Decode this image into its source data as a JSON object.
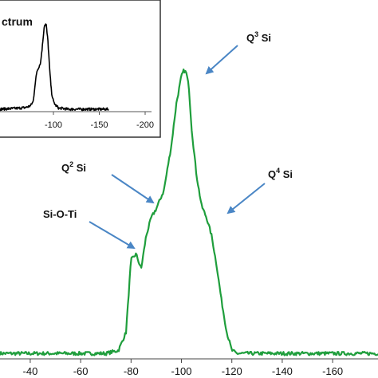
{
  "chart_data": [
    {
      "type": "line",
      "title": "",
      "xlabel": "",
      "ylabel": "",
      "xlim": [
        -28,
        -178
      ],
      "x_ticks": [
        -40,
        -60,
        -80,
        -100,
        -120,
        -140,
        -160
      ],
      "x_tick_labels": [
        "-40",
        "-60",
        "-80",
        "-100",
        "-120",
        "-140",
        "-160"
      ],
      "grid": false,
      "series": [
        {
          "color": "#1f9e3c",
          "x": [
            -30,
            -40,
            -50,
            -60,
            -70,
            -75,
            -78,
            -80,
            -82,
            -84,
            -86,
            -88,
            -90,
            -93,
            -96,
            -98,
            -100,
            -101,
            -102,
            -103,
            -104,
            -106,
            -108,
            -110,
            -112,
            -114,
            -116,
            -118,
            -120,
            -122,
            -124,
            -126,
            -130,
            -140,
            -150,
            -160,
            -170,
            -178
          ],
          "y": [
            0.01,
            0.01,
            0.01,
            0.01,
            0.01,
            0.02,
            0.08,
            0.32,
            0.34,
            0.29,
            0.4,
            0.46,
            0.49,
            0.55,
            0.7,
            0.84,
            0.93,
            0.95,
            0.94,
            0.89,
            0.76,
            0.6,
            0.5,
            0.46,
            0.4,
            0.3,
            0.18,
            0.08,
            0.02,
            0.01,
            0.01,
            0.01,
            0.01,
            0.01,
            0.01,
            0.01,
            0.01,
            0.01
          ]
        }
      ],
      "annotations": [
        {
          "base": "Q",
          "sup": "3",
          "tail": " Si"
        },
        {
          "base": "Q",
          "sup": "2",
          "tail": " Si"
        },
        {
          "base": "Q",
          "sup": "4",
          "tail": " Si"
        },
        {
          "base": "Si-O-Ti",
          "sup": "",
          "tail": ""
        }
      ],
      "arrow_color": "#4a86c5"
    },
    {
      "type": "line",
      "title": "ctrum",
      "xlim": [
        -40,
        -200
      ],
      "x_ticks": [
        -100,
        -150,
        -200
      ],
      "x_tick_labels": [
        "-100",
        "-150",
        "-200"
      ],
      "grid": false,
      "series": [
        {
          "color": "#000000",
          "x": [
            -40,
            -60,
            -70,
            -75,
            -78,
            -80,
            -82,
            -84,
            -86,
            -88,
            -90,
            -92,
            -94,
            -96,
            -98,
            -100,
            -102,
            -104,
            -106,
            -108,
            -110,
            -115,
            -120,
            -140,
            -160,
            -200
          ],
          "y": [
            0.01,
            0.02,
            0.03,
            0.05,
            0.1,
            0.3,
            0.45,
            0.5,
            0.55,
            0.75,
            0.98,
            1.0,
            0.8,
            0.45,
            0.2,
            0.1,
            0.06,
            0.04,
            0.02,
            0.02,
            0.02,
            0.01,
            0.01,
            0.01,
            0.01,
            0.01
          ]
        }
      ]
    }
  ]
}
